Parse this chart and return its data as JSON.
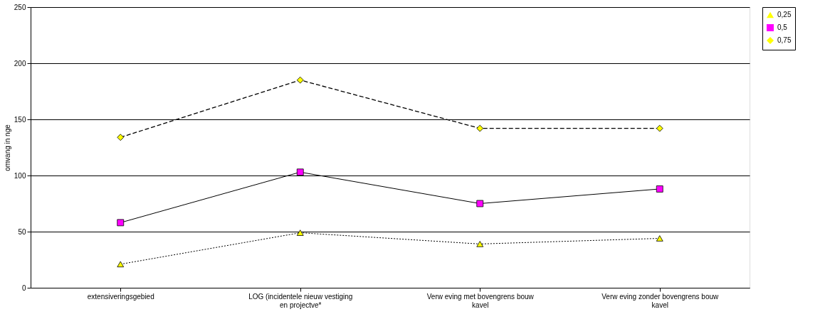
{
  "chart_data": {
    "type": "line",
    "ylabel": "omvang in nge",
    "categories": [
      "extensiveringsgebied",
      "LOG (incidentele nieuw vestiging en projectve*",
      "Verw eving met bovengrens bouw kavel",
      "Verw eving zonder bovengrens bouw kavel"
    ],
    "series": [
      {
        "name": "0,25",
        "color": "#ffff00",
        "marker": "triangle",
        "line_style": "dotted",
        "values": [
          21,
          49,
          39,
          44
        ]
      },
      {
        "name": "0,5",
        "color": "#ff00ff",
        "marker": "square",
        "line_style": "solid",
        "values": [
          58,
          103,
          75,
          88
        ]
      },
      {
        "name": "0,75",
        "color": "#ffff00",
        "marker": "diamond",
        "line_style": "dashed",
        "values": [
          134,
          185,
          142,
          142
        ]
      }
    ],
    "ylim": [
      0,
      250
    ],
    "yticks": [
      0,
      50,
      100,
      150,
      200,
      250
    ],
    "grid": "y",
    "legend": "top right"
  }
}
